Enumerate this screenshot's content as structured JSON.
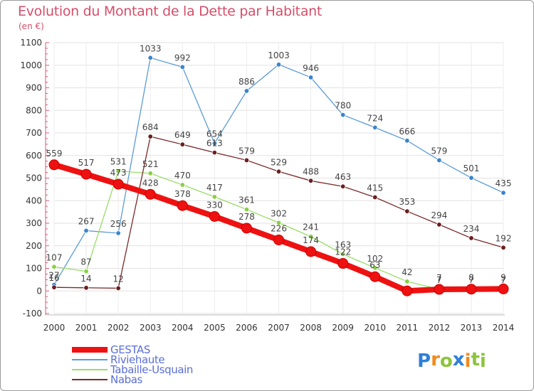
{
  "header": {
    "title": "Evolution du Montant de la Dette par Habitant",
    "unit": "(en €)"
  },
  "brand": {
    "letters": [
      "P",
      "r",
      "o",
      "x",
      "i",
      "t",
      "i"
    ],
    "letter_colors": [
      "#2f7fd8",
      "#f08a1c",
      "#8cc43c",
      "#2f7fd8",
      "#f08a1c",
      "#8cc43c",
      "#8cc43c"
    ]
  },
  "chart_data": {
    "type": "line",
    "title": "Evolution du Montant de la Dette par Habitant",
    "subtitle": "(en €)",
    "xlabel": "",
    "ylabel": "",
    "x": [
      2000,
      2001,
      2002,
      2003,
      2004,
      2005,
      2006,
      2007,
      2008,
      2009,
      2010,
      2011,
      2012,
      2013,
      2014
    ],
    "x_labels": [
      "2000",
      "2001",
      "2002",
      "2003",
      "2004",
      "2005",
      "2006",
      "2007",
      "2008",
      "2009",
      "2010",
      "2011",
      "2012",
      "2013",
      "2014"
    ],
    "ylim": [
      -100,
      1100
    ],
    "y_ticks": [
      -100,
      0,
      100,
      200,
      300,
      400,
      500,
      600,
      700,
      800,
      900,
      1000,
      1100
    ],
    "y_tick_labels": [
      "-100",
      "0",
      "100",
      "200",
      "300",
      "400",
      "500",
      "600",
      "700",
      "800",
      "900",
      "1000",
      "1100"
    ],
    "grid": "horizontal",
    "legend_position": "bottom-left",
    "series": [
      {
        "name": "GESTAS",
        "color": "#ee1111",
        "marker_fill": "#ee1111",
        "values": [
          559,
          517,
          473,
          428,
          378,
          330,
          278,
          226,
          174,
          122,
          63,
          0,
          7,
          8,
          9
        ],
        "labels": [
          "559",
          "517",
          "473",
          "428",
          "378",
          "330",
          "278",
          "226",
          "174",
          "122",
          "63",
          "0",
          "7",
          "8",
          "9"
        ],
        "label_visible": [
          true,
          true,
          true,
          true,
          true,
          true,
          true,
          true,
          true,
          true,
          true,
          false,
          true,
          true,
          true
        ]
      },
      {
        "name": "Riviehaute",
        "color": "#5b9bd5",
        "marker_fill": "#3a85cc",
        "values": [
          27,
          267,
          256,
          1033,
          992,
          654,
          886,
          1003,
          946,
          780,
          724,
          666,
          579,
          501,
          435
        ],
        "labels": [
          "27",
          "267",
          "256",
          "1033",
          "992",
          "654",
          "886",
          "1003",
          "946",
          "780",
          "724",
          "666",
          "579",
          "501",
          "435"
        ]
      },
      {
        "name": "Tabaille-Usquain",
        "color": "#99dd66",
        "marker_fill": "#88d044",
        "values": [
          107,
          87,
          531,
          521,
          470,
          417,
          361,
          302,
          241,
          163,
          102,
          42,
          7,
          7,
          7
        ],
        "labels": [
          "107",
          "87",
          "531",
          "521",
          "470",
          "417",
          "361",
          "302",
          "241",
          "163",
          "102",
          "42",
          "7",
          "7",
          "7"
        ]
      },
      {
        "name": "Nabas",
        "color": "#7b2a2a",
        "marker_fill": "#6b1f1f",
        "values": [
          16,
          14,
          12,
          684,
          649,
          613,
          579,
          529,
          488,
          463,
          415,
          353,
          294,
          234,
          192
        ],
        "labels": [
          "16",
          "14",
          "12",
          "684",
          "649",
          "613",
          "579",
          "529",
          "488",
          "463",
          "415",
          "353",
          "294",
          "234",
          "192"
        ]
      }
    ]
  }
}
